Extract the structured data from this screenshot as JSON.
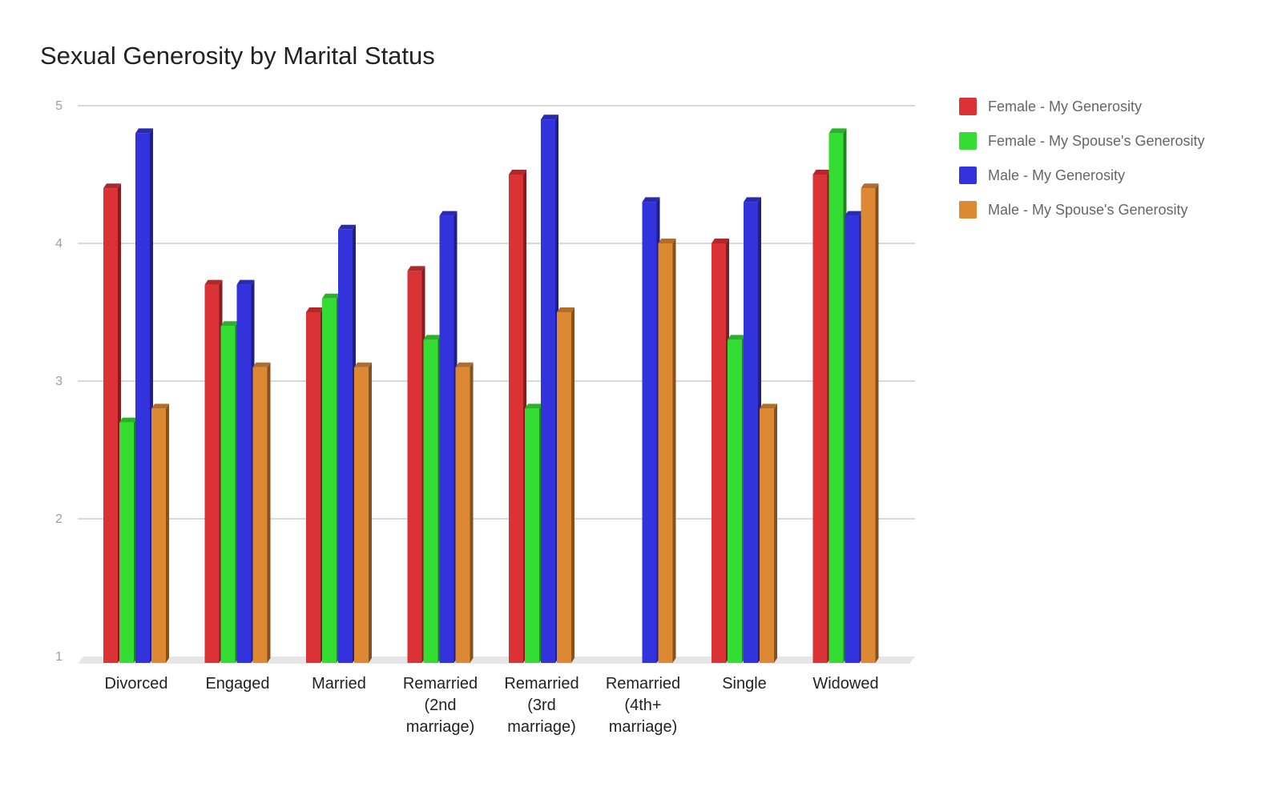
{
  "chart_data": {
    "type": "bar",
    "title": "Sexual Generosity by Marital Status",
    "xlabel": "",
    "ylabel": "",
    "ylim": [
      1,
      5
    ],
    "yticks": [
      1,
      2,
      3,
      4,
      5
    ],
    "grid": true,
    "legend_position": "right",
    "style": "3d",
    "categories": [
      [
        "Divorced"
      ],
      [
        "Engaged"
      ],
      [
        "Married"
      ],
      [
        "Remarried",
        "(2nd",
        "marriage)"
      ],
      [
        "Remarried",
        "(3rd",
        "marriage)"
      ],
      [
        "Remarried",
        "(4th+",
        "marriage)"
      ],
      [
        "Single"
      ],
      [
        "Widowed"
      ]
    ],
    "series": [
      {
        "name": "Female - My Generosity",
        "color": "#db3236",
        "values": [
          4.4,
          3.7,
          3.5,
          3.8,
          4.5,
          null,
          4.0,
          4.5
        ]
      },
      {
        "name": "Female - My Spouse's Generosity",
        "color": "#33dd33",
        "values": [
          2.7,
          3.4,
          3.6,
          3.3,
          2.8,
          null,
          3.3,
          4.8
        ]
      },
      {
        "name": "Male - My Generosity",
        "color": "#3333dd",
        "values": [
          4.8,
          3.7,
          4.1,
          4.2,
          4.9,
          4.3,
          4.3,
          4.2
        ]
      },
      {
        "name": "Male - My Spouse's Generosity",
        "color": "#dd8833",
        "values": [
          2.8,
          3.1,
          3.1,
          3.1,
          3.5,
          4.0,
          2.8,
          4.4
        ]
      }
    ]
  }
}
